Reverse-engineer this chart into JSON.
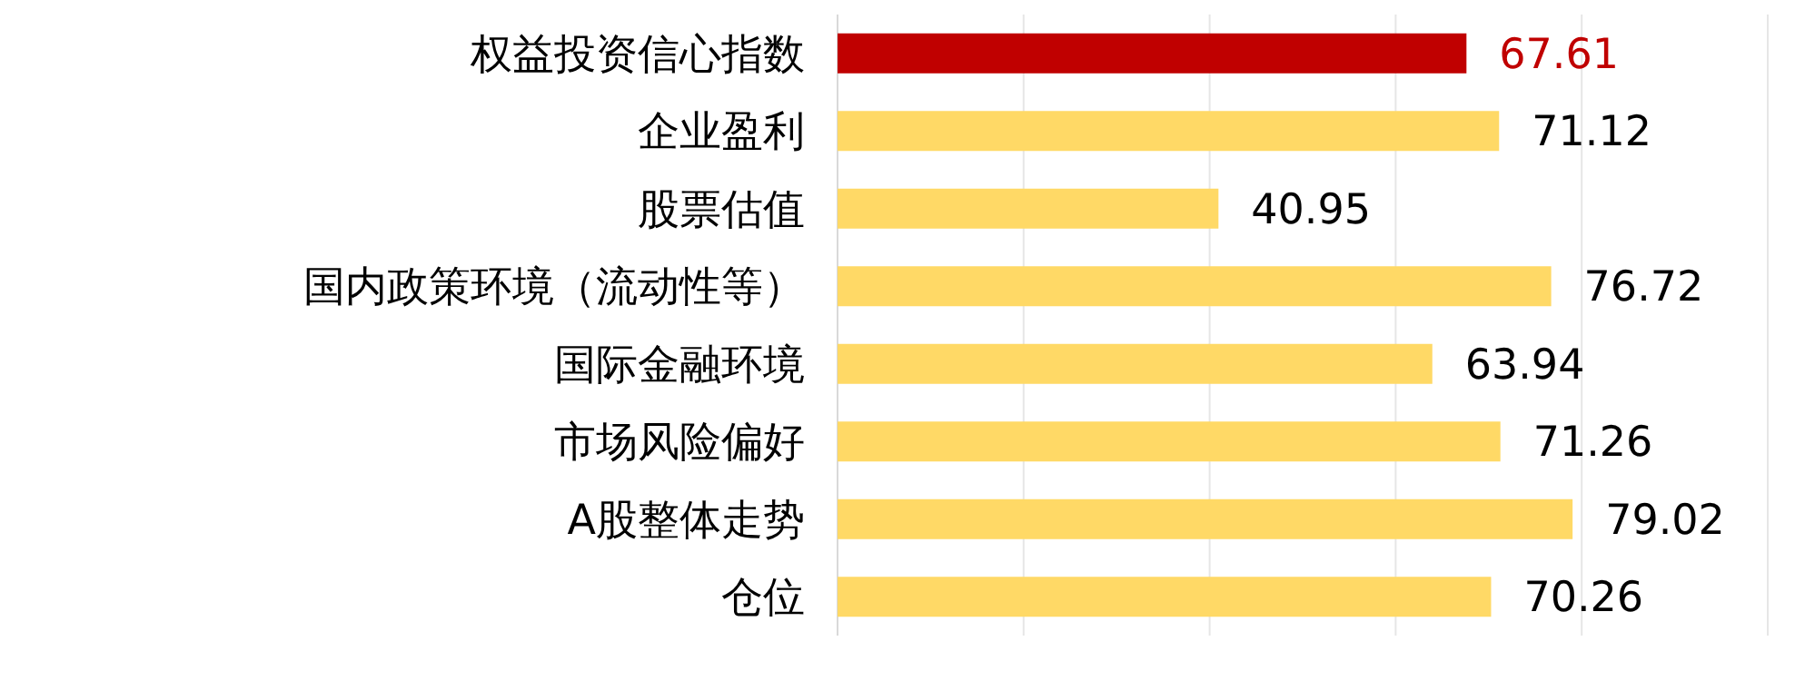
{
  "chart_data": {
    "type": "bar",
    "orientation": "horizontal",
    "categories": [
      "权益投资信心指数",
      "企业盈利",
      "股票估值",
      "国内政策环境（流动性等）",
      "国际金融环境",
      "市场风险偏好",
      "A股整体走势",
      "仓位"
    ],
    "values": [
      67.61,
      71.12,
      40.95,
      76.72,
      63.94,
      71.26,
      79.02,
      70.26
    ],
    "colors": [
      "#c00000",
      "#ffd966",
      "#ffd966",
      "#ffd966",
      "#ffd966",
      "#ffd966",
      "#ffd966",
      "#ffd966"
    ],
    "xlim": [
      0,
      100
    ],
    "xticks": [
      {
        "value": 0,
        "label": null
      },
      {
        "value": 20,
        "label": null
      },
      {
        "value": 40,
        "label": null
      },
      {
        "value": 60,
        "label": null
      },
      {
        "value": 80,
        "label": null
      },
      {
        "value": 100,
        "label": null
      }
    ],
    "grid": "x",
    "data_labels": true,
    "tick_labels": "y"
  }
}
